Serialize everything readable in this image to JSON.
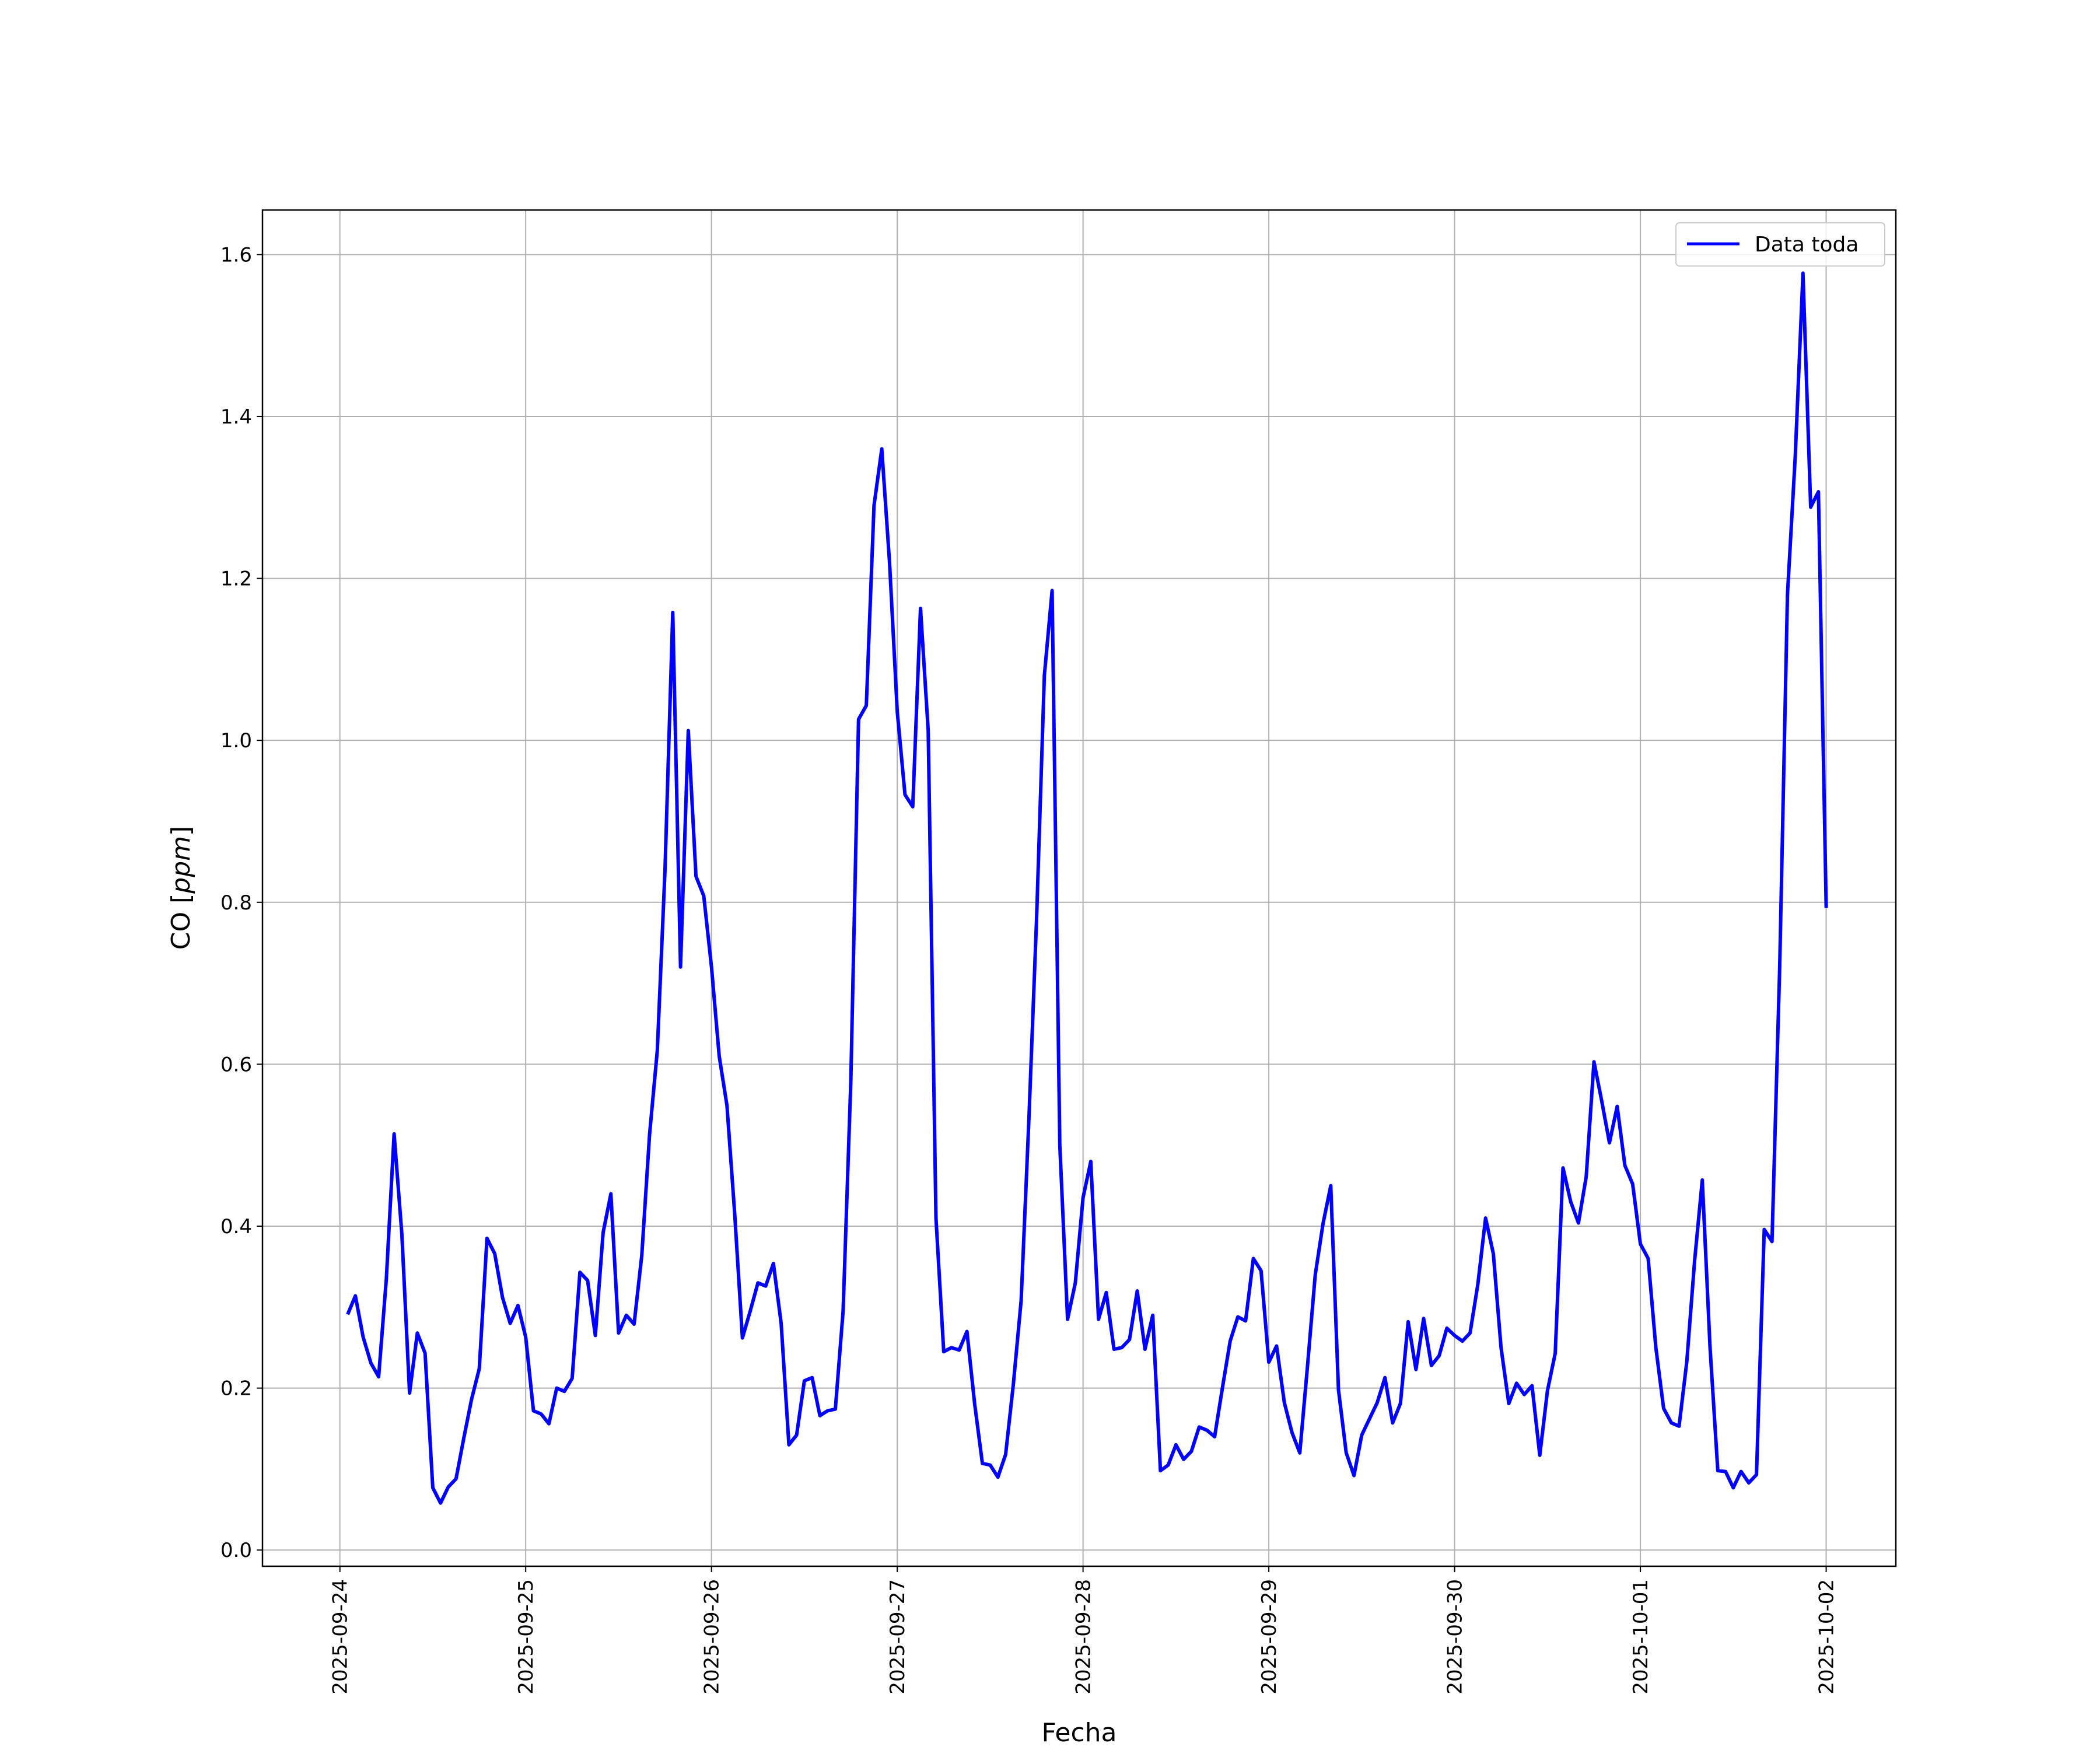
{
  "chart_data": {
    "type": "line",
    "title": "",
    "xlabel": "Fecha",
    "ylabel": "CO",
    "ylabel_unit": "ppm",
    "xlim": [
      "2025-09-23T14:00",
      "2025-10-02T09:00"
    ],
    "ylim": [
      -0.02,
      1.655
    ],
    "grid": true,
    "legend_position": "top-right",
    "x_ticks": [
      "2025-09-24",
      "2025-09-25",
      "2025-09-26",
      "2025-09-27",
      "2025-09-28",
      "2025-09-29",
      "2025-09-30",
      "2025-10-01",
      "2025-10-02"
    ],
    "y_ticks": [
      "0.0",
      "0.2",
      "0.4",
      "0.6",
      "0.8",
      "1.0",
      "1.2",
      "1.4",
      "1.6"
    ],
    "series": [
      {
        "name": "Data toda",
        "color": "#0000ff",
        "points": [
          [
            "2025-09-24T01:00",
            0.291
          ],
          [
            "2025-09-24T02:00",
            0.314
          ],
          [
            "2025-09-24T03:00",
            0.263
          ],
          [
            "2025-09-24T04:00",
            0.231
          ],
          [
            "2025-09-24T05:00",
            0.214
          ],
          [
            "2025-09-24T06:00",
            0.335
          ],
          [
            "2025-09-24T07:00",
            0.514
          ],
          [
            "2025-09-24T08:00",
            0.39
          ],
          [
            "2025-09-24T09:00",
            0.194
          ],
          [
            "2025-09-24T10:00",
            0.268
          ],
          [
            "2025-09-24T11:00",
            0.243
          ],
          [
            "2025-09-24T12:00",
            0.077
          ],
          [
            "2025-09-24T13:00",
            0.058
          ],
          [
            "2025-09-24T14:00",
            0.078
          ],
          [
            "2025-09-24T15:00",
            0.088
          ],
          [
            "2025-09-24T16:00",
            0.138
          ],
          [
            "2025-09-24T17:00",
            0.186
          ],
          [
            "2025-09-24T18:00",
            0.224
          ],
          [
            "2025-09-24T19:00",
            0.385
          ],
          [
            "2025-09-24T20:00",
            0.366
          ],
          [
            "2025-09-24T21:00",
            0.312
          ],
          [
            "2025-09-24T22:00",
            0.28
          ],
          [
            "2025-09-24T23:00",
            0.302
          ],
          [
            "2025-09-25T00:00",
            0.263
          ],
          [
            "2025-09-25T01:00",
            0.172
          ],
          [
            "2025-09-25T02:00",
            0.168
          ],
          [
            "2025-09-25T03:00",
            0.156
          ],
          [
            "2025-09-25T04:00",
            0.2
          ],
          [
            "2025-09-25T05:00",
            0.196
          ],
          [
            "2025-09-25T06:00",
            0.212
          ],
          [
            "2025-09-25T07:00",
            0.343
          ],
          [
            "2025-09-25T08:00",
            0.333
          ],
          [
            "2025-09-25T09:00",
            0.265
          ],
          [
            "2025-09-25T10:00",
            0.392
          ],
          [
            "2025-09-25T11:00",
            0.44
          ],
          [
            "2025-09-25T12:00",
            0.268
          ],
          [
            "2025-09-25T13:00",
            0.29
          ],
          [
            "2025-09-25T14:00",
            0.279
          ],
          [
            "2025-09-25T15:00",
            0.364
          ],
          [
            "2025-09-25T16:00",
            0.513
          ],
          [
            "2025-09-25T17:00",
            0.617
          ],
          [
            "2025-09-25T18:00",
            0.84
          ],
          [
            "2025-09-25T19:00",
            1.158
          ],
          [
            "2025-09-25T20:00",
            0.72
          ],
          [
            "2025-09-25T21:00",
            1.012
          ],
          [
            "2025-09-25T22:00",
            0.832
          ],
          [
            "2025-09-25T23:00",
            0.808
          ],
          [
            "2025-09-26T00:00",
            0.72
          ],
          [
            "2025-09-26T01:00",
            0.61
          ],
          [
            "2025-09-26T02:00",
            0.549
          ],
          [
            "2025-09-26T03:00",
            0.415
          ],
          [
            "2025-09-26T04:00",
            0.262
          ],
          [
            "2025-09-26T05:00",
            0.295
          ],
          [
            "2025-09-26T06:00",
            0.33
          ],
          [
            "2025-09-26T07:00",
            0.326
          ],
          [
            "2025-09-26T08:00",
            0.354
          ],
          [
            "2025-09-26T09:00",
            0.28
          ],
          [
            "2025-09-26T10:00",
            0.13
          ],
          [
            "2025-09-26T11:00",
            0.142
          ],
          [
            "2025-09-26T12:00",
            0.209
          ],
          [
            "2025-09-26T13:00",
            0.213
          ],
          [
            "2025-09-26T14:00",
            0.166
          ],
          [
            "2025-09-26T15:00",
            0.172
          ],
          [
            "2025-09-26T16:00",
            0.174
          ],
          [
            "2025-09-26T17:00",
            0.295
          ],
          [
            "2025-09-26T18:00",
            0.578
          ],
          [
            "2025-09-26T19:00",
            1.026
          ],
          [
            "2025-09-26T20:00",
            1.043
          ],
          [
            "2025-09-26T21:00",
            1.29
          ],
          [
            "2025-09-26T22:00",
            1.36
          ],
          [
            "2025-09-26T23:00",
            1.22
          ],
          [
            "2025-09-27T00:00",
            1.035
          ],
          [
            "2025-09-27T01:00",
            0.933
          ],
          [
            "2025-09-27T02:00",
            0.918
          ],
          [
            "2025-09-27T03:00",
            1.163
          ],
          [
            "2025-09-27T04:00",
            1.012
          ],
          [
            "2025-09-27T05:00",
            0.41
          ],
          [
            "2025-09-27T06:00",
            0.245
          ],
          [
            "2025-09-27T07:00",
            0.25
          ],
          [
            "2025-09-27T08:00",
            0.247
          ],
          [
            "2025-09-27T09:00",
            0.27
          ],
          [
            "2025-09-27T10:00",
            0.18
          ],
          [
            "2025-09-27T11:00",
            0.107
          ],
          [
            "2025-09-27T12:00",
            0.105
          ],
          [
            "2025-09-27T13:00",
            0.09
          ],
          [
            "2025-09-27T14:00",
            0.118
          ],
          [
            "2025-09-27T15:00",
            0.205
          ],
          [
            "2025-09-27T16:00",
            0.308
          ],
          [
            "2025-09-27T17:00",
            0.53
          ],
          [
            "2025-09-27T18:00",
            0.78
          ],
          [
            "2025-09-27T19:00",
            1.08
          ],
          [
            "2025-09-27T20:00",
            1.185
          ],
          [
            "2025-09-27T21:00",
            0.5
          ],
          [
            "2025-09-27T22:00",
            0.285
          ],
          [
            "2025-09-27T23:00",
            0.33
          ],
          [
            "2025-09-28T00:00",
            0.435
          ],
          [
            "2025-09-28T01:00",
            0.48
          ],
          [
            "2025-09-28T02:00",
            0.285
          ],
          [
            "2025-09-28T03:00",
            0.318
          ],
          [
            "2025-09-28T04:00",
            0.248
          ],
          [
            "2025-09-28T05:00",
            0.25
          ],
          [
            "2025-09-28T06:00",
            0.26
          ],
          [
            "2025-09-28T07:00",
            0.32
          ],
          [
            "2025-09-28T08:00",
            0.248
          ],
          [
            "2025-09-28T09:00",
            0.29
          ],
          [
            "2025-09-28T10:00",
            0.098
          ],
          [
            "2025-09-28T11:00",
            0.105
          ],
          [
            "2025-09-28T12:00",
            0.13
          ],
          [
            "2025-09-28T13:00",
            0.112
          ],
          [
            "2025-09-28T14:00",
            0.122
          ],
          [
            "2025-09-28T15:00",
            0.152
          ],
          [
            "2025-09-28T16:00",
            0.148
          ],
          [
            "2025-09-28T17:00",
            0.14
          ],
          [
            "2025-09-28T18:00",
            0.2
          ],
          [
            "2025-09-28T19:00",
            0.258
          ],
          [
            "2025-09-28T20:00",
            0.288
          ],
          [
            "2025-09-28T21:00",
            0.283
          ],
          [
            "2025-09-28T22:00",
            0.36
          ],
          [
            "2025-09-28T23:00",
            0.345
          ],
          [
            "2025-09-29T00:00",
            0.232
          ],
          [
            "2025-09-29T01:00",
            0.252
          ],
          [
            "2025-09-29T02:00",
            0.182
          ],
          [
            "2025-09-29T03:00",
            0.145
          ],
          [
            "2025-09-29T04:00",
            0.12
          ],
          [
            "2025-09-29T05:00",
            0.228
          ],
          [
            "2025-09-29T06:00",
            0.34
          ],
          [
            "2025-09-29T07:00",
            0.403
          ],
          [
            "2025-09-29T08:00",
            0.45
          ],
          [
            "2025-09-29T09:00",
            0.198
          ],
          [
            "2025-09-29T10:00",
            0.12
          ],
          [
            "2025-09-29T11:00",
            0.092
          ],
          [
            "2025-09-29T12:00",
            0.142
          ],
          [
            "2025-09-29T13:00",
            0.162
          ],
          [
            "2025-09-29T14:00",
            0.182
          ],
          [
            "2025-09-29T15:00",
            0.213
          ],
          [
            "2025-09-29T16:00",
            0.157
          ],
          [
            "2025-09-29T17:00",
            0.181
          ],
          [
            "2025-09-29T18:00",
            0.282
          ],
          [
            "2025-09-29T19:00",
            0.223
          ],
          [
            "2025-09-29T20:00",
            0.286
          ],
          [
            "2025-09-29T21:00",
            0.228
          ],
          [
            "2025-09-29T22:00",
            0.24
          ],
          [
            "2025-09-29T23:00",
            0.274
          ],
          [
            "2025-09-30T00:00",
            0.265
          ],
          [
            "2025-09-30T01:00",
            0.258
          ],
          [
            "2025-09-30T02:00",
            0.268
          ],
          [
            "2025-09-30T03:00",
            0.328
          ],
          [
            "2025-09-30T04:00",
            0.41
          ],
          [
            "2025-09-30T05:00",
            0.366
          ],
          [
            "2025-09-30T06:00",
            0.25
          ],
          [
            "2025-09-30T07:00",
            0.181
          ],
          [
            "2025-09-30T08:00",
            0.206
          ],
          [
            "2025-09-30T09:00",
            0.192
          ],
          [
            "2025-09-30T10:00",
            0.203
          ],
          [
            "2025-09-30T11:00",
            0.117
          ],
          [
            "2025-09-30T12:00",
            0.197
          ],
          [
            "2025-09-30T13:00",
            0.243
          ],
          [
            "2025-09-30T14:00",
            0.472
          ],
          [
            "2025-09-30T15:00",
            0.43
          ],
          [
            "2025-09-30T16:00",
            0.404
          ],
          [
            "2025-09-30T17:00",
            0.461
          ],
          [
            "2025-09-30T18:00",
            0.603
          ],
          [
            "2025-09-30T19:00",
            0.555
          ],
          [
            "2025-09-30T20:00",
            0.503
          ],
          [
            "2025-09-30T21:00",
            0.548
          ],
          [
            "2025-09-30T22:00",
            0.475
          ],
          [
            "2025-09-30T23:00",
            0.452
          ],
          [
            "2025-10-01T00:00",
            0.378
          ],
          [
            "2025-10-01T01:00",
            0.36
          ],
          [
            "2025-10-01T02:00",
            0.25
          ],
          [
            "2025-10-01T03:00",
            0.175
          ],
          [
            "2025-10-01T04:00",
            0.157
          ],
          [
            "2025-10-01T05:00",
            0.153
          ],
          [
            "2025-10-01T06:00",
            0.233
          ],
          [
            "2025-10-01T07:00",
            0.357
          ],
          [
            "2025-10-01T08:00",
            0.457
          ],
          [
            "2025-10-01T09:00",
            0.25
          ],
          [
            "2025-10-01T10:00",
            0.098
          ],
          [
            "2025-10-01T11:00",
            0.097
          ],
          [
            "2025-10-01T12:00",
            0.077
          ],
          [
            "2025-10-01T13:00",
            0.097
          ],
          [
            "2025-10-01T14:00",
            0.083
          ],
          [
            "2025-10-01T15:00",
            0.093
          ],
          [
            "2025-10-01T16:00",
            0.396
          ],
          [
            "2025-10-01T17:00",
            0.381
          ],
          [
            "2025-10-01T18:00",
            0.72
          ],
          [
            "2025-10-01T19:00",
            1.18
          ],
          [
            "2025-10-01T20:00",
            1.35
          ],
          [
            "2025-10-01T21:00",
            1.577
          ],
          [
            "2025-10-01T22:00",
            1.288
          ],
          [
            "2025-10-01T23:00",
            1.307
          ],
          [
            "2025-10-02T00:00",
            0.793
          ]
        ]
      }
    ]
  }
}
